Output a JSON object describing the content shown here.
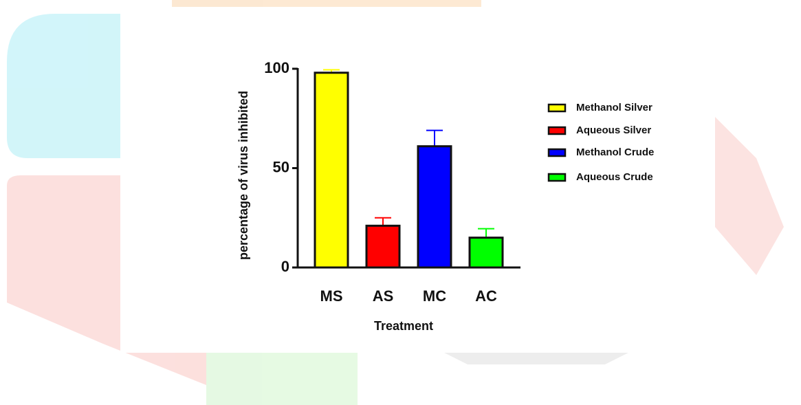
{
  "chart_data": {
    "type": "bar",
    "x_label": "Treatment",
    "y_label": "percentage of virus inhibited",
    "categories": [
      "MS",
      "AS",
      "MC",
      "AC"
    ],
    "values": [
      98,
      21,
      61,
      15
    ],
    "errors": [
      1.5,
      4,
      8,
      4.5
    ],
    "colors": [
      "#ffff00",
      "#ff0000",
      "#0000ff",
      "#00ff00"
    ],
    "legend": [
      "Methanol Silver",
      "Aqueous Silver",
      "Methanol Crude",
      "Aqueous Crude"
    ],
    "ylim": [
      0,
      100
    ],
    "yticks": [
      0,
      50,
      100
    ],
    "grid": false
  }
}
